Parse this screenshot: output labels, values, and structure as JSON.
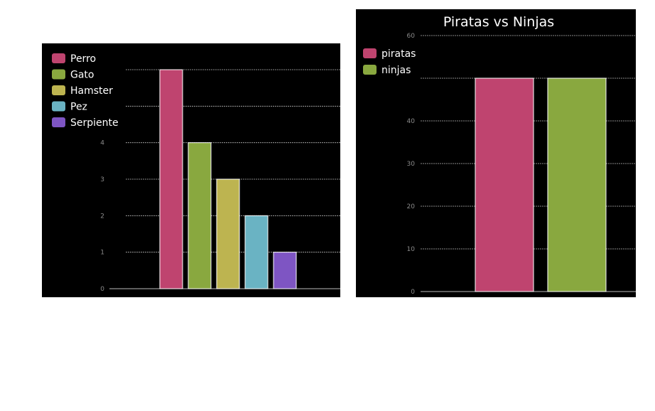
{
  "chart_data": [
    {
      "type": "bar",
      "title": "",
      "categories": [
        "Perro",
        "Gato",
        "Hamster",
        "Pez",
        "Serpiente"
      ],
      "values": [
        6,
        4,
        3,
        2,
        1
      ],
      "colors": [
        "#bf446f",
        "#89a83f",
        "#bdb450",
        "#6ab3c3",
        "#7e55c3"
      ],
      "legend": [
        "Perro",
        "Gato",
        "Hamster",
        "Pez",
        "Serpiente"
      ],
      "legend_position": "top-left",
      "yticks": [
        "0",
        "1",
        "2",
        "3",
        "4"
      ],
      "ylim": [
        0,
        6
      ],
      "grid": true
    },
    {
      "type": "bar",
      "title": "Piratas vs Ninjas",
      "series": [
        {
          "name": "piratas",
          "values": [
            50
          ],
          "color": "#bf446f"
        },
        {
          "name": "ninjas",
          "values": [
            50
          ],
          "color": "#89a83f"
        }
      ],
      "legend": [
        "piratas",
        "ninjas"
      ],
      "legend_position": "top-left",
      "yticks": [
        "0",
        "10",
        "20",
        "30",
        "40",
        "60"
      ],
      "ylim": [
        0,
        60
      ],
      "grid": true
    }
  ]
}
